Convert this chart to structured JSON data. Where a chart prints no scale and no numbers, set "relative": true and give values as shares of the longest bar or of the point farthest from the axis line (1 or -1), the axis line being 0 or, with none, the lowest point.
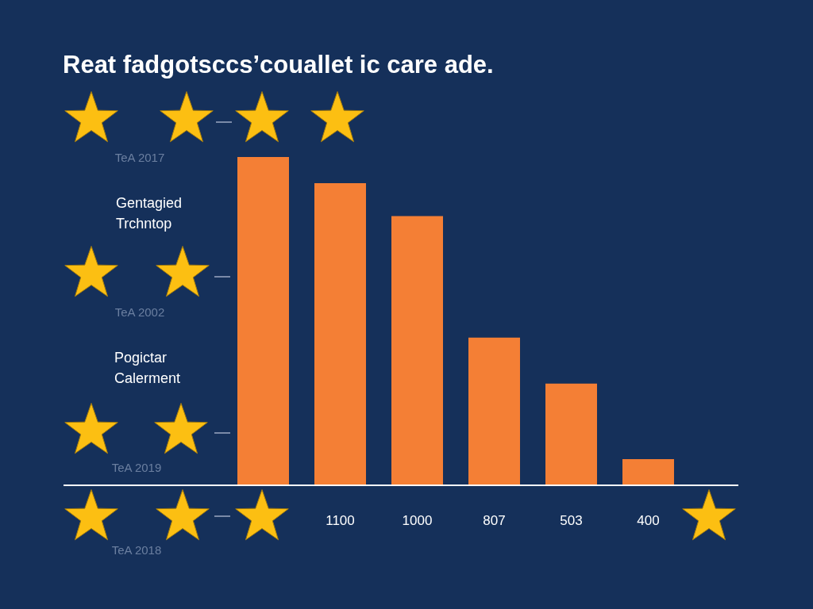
{
  "chart_data": {
    "type": "bar",
    "title": "Reat fadgotsccs’couallet ic care ade.",
    "categories": [
      null,
      "1100",
      "1000",
      "807",
      "503",
      "400"
    ],
    "values": [
      1,
      0.92,
      0.82,
      0.45,
      0.31,
      0.08
    ],
    "color": "#f47f35",
    "relative": true,
    "annotations": [
      "TeA 2017",
      "Gentagied Trchntop",
      "TeA 2002",
      "Pogictar Calerment",
      "TeA 2019",
      "TeA 2018"
    ]
  }
}
